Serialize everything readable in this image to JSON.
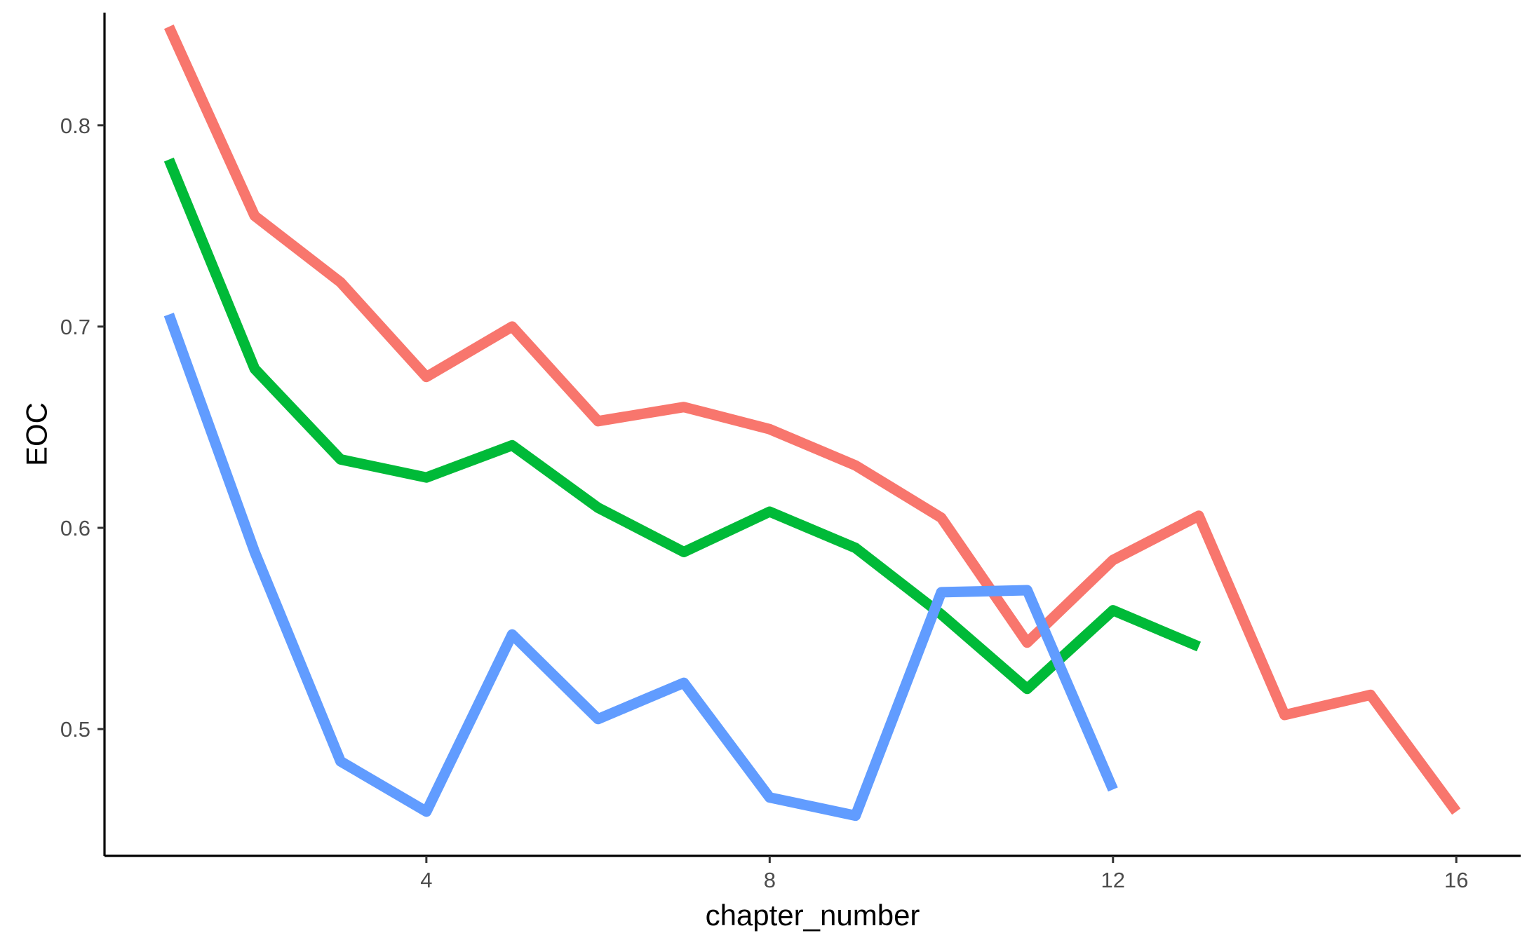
{
  "chart_data": {
    "type": "line",
    "title": "",
    "xlabel": "chapter_number",
    "ylabel": "EOC",
    "xlim": [
      0.25,
      16.75
    ],
    "ylim": [
      0.437,
      0.856
    ],
    "x_ticks": [
      4,
      8,
      12,
      16
    ],
    "y_ticks": [
      0.5,
      0.6,
      0.7,
      0.8
    ],
    "x_tick_labels": [
      "4",
      "8",
      "12",
      "16"
    ],
    "y_tick_labels": [
      "0.5",
      "0.6",
      "0.7",
      "0.8"
    ],
    "grid": false,
    "legend": "none",
    "series": [
      {
        "color": "#F8766D",
        "x": [
          1,
          2,
          3,
          4,
          5,
          6,
          7,
          8,
          9,
          10,
          11,
          12,
          13,
          14,
          15,
          16
        ],
        "y": [
          0.849,
          0.755,
          0.722,
          0.675,
          0.7,
          0.653,
          0.66,
          0.649,
          0.631,
          0.605,
          0.543,
          0.584,
          0.606,
          0.507,
          0.517,
          0.459
        ]
      },
      {
        "color": "#00BA38",
        "x": [
          1,
          2,
          3,
          4,
          5,
          6,
          7,
          8,
          9,
          10,
          11,
          12,
          13
        ],
        "y": [
          0.783,
          0.679,
          0.634,
          0.625,
          0.641,
          0.61,
          0.588,
          0.608,
          0.59,
          0.557,
          0.52,
          0.559,
          0.541
        ]
      },
      {
        "color": "#619CFF",
        "x": [
          1,
          2,
          3,
          4,
          5,
          6,
          7,
          8,
          9,
          10,
          11,
          12
        ],
        "y": [
          0.706,
          0.588,
          0.484,
          0.459,
          0.547,
          0.505,
          0.523,
          0.466,
          0.457,
          0.568,
          0.569,
          0.47
        ]
      }
    ]
  }
}
